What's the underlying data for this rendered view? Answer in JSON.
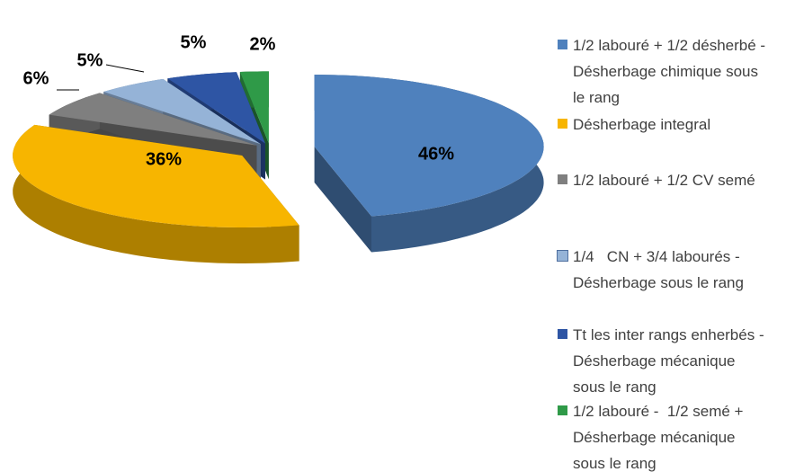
{
  "chart_data": {
    "type": "pie3d",
    "categories": [
      "1/2 labouré + 1/2 désherbé - Désherbage chimique sous le rang",
      "Désherbage integral",
      "1/2 labouré + 1/2 CV semé",
      "1/4   CN + 3/4 labourés - Désherbage sous le rang",
      "Tt les inter rangs enherbés - Désherbage mécanique  sous le rang",
      "1/2 labouré -  1/2 semé + Désherbage mécanique sous le rang"
    ],
    "values": [
      46,
      36,
      6,
      5,
      5,
      2
    ],
    "value_labels": [
      "46%",
      "36%",
      "6%",
      "5%",
      "5%",
      "2%"
    ],
    "colors": [
      "#4f81bd",
      "#f7b500",
      "#7f7f7f",
      "#95b3d7",
      "#2e55a4",
      "#2f9a48"
    ],
    "legend": "right"
  }
}
